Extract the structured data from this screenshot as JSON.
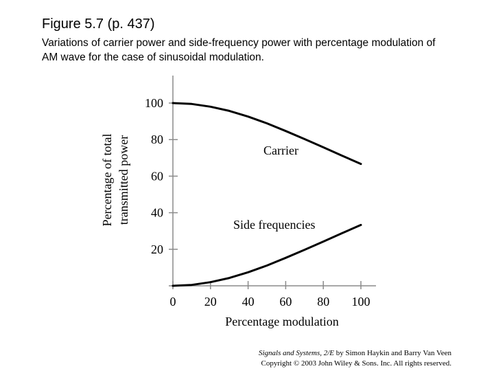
{
  "figure": {
    "title": "Figure 5.7  (p. 437)",
    "caption": "Variations of carrier power and side-frequency power with percentage modulation of AM wave for the case of sinusoidal modulation."
  },
  "credit": {
    "book_title": "Signals and Systems, 2/E",
    "authors": " by Simon Haykin and Barry Van Veen",
    "copyright": "Copyright © 2003 John Wiley & Sons. Inc. All rights reserved."
  },
  "chart_data": {
    "type": "line",
    "title": "",
    "xlabel": "Percentage modulation",
    "ylabel_line1": "Percentage of total",
    "ylabel_line2": "transmitted power",
    "xlim": [
      0,
      100
    ],
    "ylim": [
      0,
      100
    ],
    "xticks": [
      0,
      20,
      40,
      60,
      80,
      100
    ],
    "yticks": [
      20,
      40,
      60,
      80,
      100
    ],
    "grid": false,
    "line_color": "#000000",
    "series": [
      {
        "name": "Carrier",
        "x": [
          0,
          10,
          20,
          30,
          40,
          50,
          60,
          70,
          80,
          90,
          100
        ],
        "values": [
          100,
          99.5,
          98.0,
          95.7,
          92.6,
          88.9,
          84.7,
          80.3,
          75.8,
          71.2,
          66.7
        ]
      },
      {
        "name": "Side frequencies",
        "x": [
          0,
          10,
          20,
          30,
          40,
          50,
          60,
          70,
          80,
          90,
          100
        ],
        "values": [
          0,
          0.5,
          2.0,
          4.3,
          7.4,
          11.1,
          15.3,
          19.7,
          24.2,
          28.8,
          33.3
        ]
      }
    ]
  }
}
